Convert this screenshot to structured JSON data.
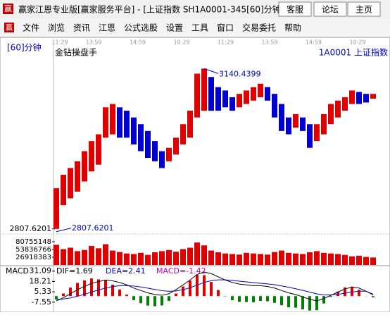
{
  "window": {
    "title": "赢家江恩专业版[赢家服务平台] - [上证指数  SH1A0001-345[60]分钟",
    "buttons": [
      "客服",
      "论坛",
      "主页"
    ]
  },
  "menu": [
    "文件",
    "浏览",
    "资讯",
    "江恩",
    "公式选股",
    "设置",
    "工具",
    "窗口",
    "交易委托",
    "帮助"
  ],
  "chart_data": [
    {
      "type": "range-bar",
      "period": "[60]分钟",
      "symbol": "1A0001 上证指数",
      "indicator": "金钻操盘手",
      "time_labels": [
        "11:29",
        "13:59",
        "14:59",
        "10:29",
        "11:29",
        "13:59",
        "14:59",
        "10:29"
      ],
      "high": [
        2892,
        2920,
        2934,
        2948,
        2969,
        2990,
        3004,
        3060,
        3067,
        3060,
        3053,
        3039,
        3025,
        3011,
        2990,
        2969,
        2976,
        2997,
        3025,
        3053,
        3130,
        3140.4399,
        3123,
        3102,
        3095,
        3081,
        3088,
        3095,
        3102,
        3109,
        3102,
        3088,
        3067,
        3039,
        3046,
        3039,
        3025,
        3025,
        3046,
        3067,
        3074,
        3081,
        3095,
        3092,
        3088,
        3088
      ],
      "low": [
        2807.6201,
        2857,
        2871,
        2885,
        2906,
        2927,
        2941,
        2997,
        3004,
        2997,
        2997,
        2983,
        2969,
        2955,
        2948,
        2934,
        2948,
        2962,
        2983,
        2997,
        3039,
        3053,
        3053,
        3053,
        3060,
        3053,
        3060,
        3067,
        3074,
        3081,
        3074,
        3039,
        3011,
        3004,
        3018,
        3011,
        2976,
        2990,
        3004,
        3025,
        3039,
        3053,
        3067,
        3067,
        3070,
        3078
      ],
      "up_color": "#e00000",
      "down_color": "#0000d0",
      "ylim": [
        2800,
        3160
      ],
      "yticks": [
        2807.6201
      ]
    },
    {
      "type": "bar",
      "values": [
        70000000,
        55000000,
        60000000,
        48000000,
        52000000,
        66000000,
        58000000,
        72000000,
        50000000,
        45000000,
        40000000,
        38000000,
        42000000,
        35000000,
        44000000,
        48000000,
        52000000,
        46000000,
        55000000,
        60000000,
        78000000,
        68000000,
        50000000,
        44000000,
        40000000,
        38000000,
        36000000,
        42000000,
        40000000,
        38000000,
        36000000,
        45000000,
        50000000,
        42000000,
        40000000,
        38000000,
        44000000,
        48000000,
        42000000,
        40000000,
        38000000,
        35000000,
        30000000,
        32000000,
        28000000,
        26000000
      ],
      "color": "#e00000",
      "ylim": [
        0,
        107673531
      ],
      "yticks": [
        26918383,
        53836766,
        80755148
      ]
    },
    {
      "type": "macd",
      "title": "MACD",
      "series": [
        {
          "name": "DIF=1.69",
          "color": "#000000",
          "values": [
            -6,
            -2,
            3,
            8,
            12,
            16,
            18,
            20,
            19,
            17,
            14,
            10,
            7,
            4,
            2,
            1,
            3,
            8,
            14,
            20,
            27,
            30,
            28,
            24,
            20,
            17,
            15,
            14,
            13,
            13,
            12,
            10,
            7,
            4,
            2,
            -1,
            -4,
            -6,
            -3,
            1,
            5,
            9,
            11,
            10,
            6,
            1.69
          ]
        },
        {
          "name": "DEA=2.41",
          "color": "#0000c0",
          "values": [
            -4,
            -3.6,
            -2.3,
            -0.2,
            2.2,
            5,
            7.6,
            10.1,
            11.9,
            12.9,
            13.1,
            12.5,
            11.4,
            9.9,
            8.3,
            6.8,
            6,
            6.4,
            8,
            10.4,
            13.7,
            17,
            19.2,
            20.2,
            20.2,
            19.5,
            18.6,
            17.7,
            16.8,
            16,
            15.2,
            14.2,
            12.7,
            11,
            9.2,
            7.2,
            5,
            2.8,
            1.6,
            1.5,
            2.2,
            3.6,
            5.1,
            6.1,
            6.1,
            2.41
          ]
        },
        {
          "name": "MACD=-1.42",
          "color": "#c000c0",
          "values": [
            -4,
            3.2,
            10.6,
            16.4,
            19.6,
            22,
            20.8,
            19.8,
            14.2,
            8.2,
            1.8,
            -5,
            -8.8,
            -11.8,
            -12.6,
            -11.6,
            -6,
            3.2,
            12,
            19.2,
            26.6,
            26,
            17.6,
            7.6,
            -0.4,
            -5,
            -7.2,
            -7.4,
            -7.6,
            -6,
            -6.4,
            -8.4,
            -11.4,
            -14,
            -14.4,
            -16.4,
            -18,
            -17.6,
            -9.2,
            -1,
            5.6,
            10.8,
            11.8,
            7.8,
            -0.2,
            -1.42
          ]
        }
      ],
      "pos_color": "#e00000",
      "neg_color": "#008000",
      "ylim": [
        -20,
        37
      ],
      "yticks": [
        -7.55,
        5.33,
        18.21,
        31.09
      ]
    }
  ]
}
